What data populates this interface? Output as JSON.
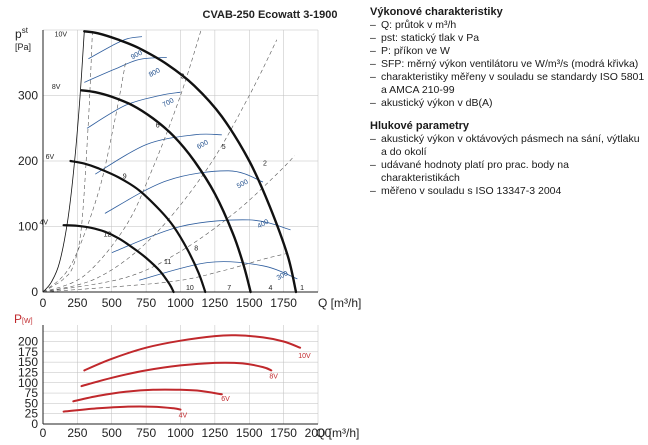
{
  "chart_data": [
    {
      "type": "line",
      "title": "CVAB-250 Ecowatt 3-1900",
      "ylabel_main": "p",
      "ylabel_sub": "st",
      "ylabel_unit": "[Pa]",
      "xlabel": "Q [m³/h]",
      "xlim": [
        0,
        2000
      ],
      "ylim": [
        0,
        400
      ],
      "x_ticks": [
        "0",
        "250",
        "500",
        "750",
        "1000",
        "1250",
        "1500",
        "1750"
      ],
      "y_ticks": [
        "0",
        "100",
        "200",
        "300"
      ],
      "grid": true,
      "fan_curves": [
        {
          "name": "10V",
          "points": [
            [
              300,
              398
            ],
            [
              400,
              395
            ],
            [
              550,
              385
            ],
            [
              700,
              372
            ],
            [
              900,
              348
            ],
            [
              1100,
              315
            ],
            [
              1300,
              268
            ],
            [
              1500,
              200
            ],
            [
              1650,
              130
            ],
            [
              1780,
              55
            ],
            [
              1840,
              0
            ]
          ]
        },
        {
          "name": "8V",
          "points": [
            [
              280,
              308
            ],
            [
              380,
              305
            ],
            [
              500,
              298
            ],
            [
              650,
              285
            ],
            [
              800,
              265
            ],
            [
              950,
              238
            ],
            [
              1100,
              200
            ],
            [
              1250,
              150
            ],
            [
              1380,
              90
            ],
            [
              1460,
              40
            ],
            [
              1510,
              0
            ]
          ]
        },
        {
          "name": "6V",
          "points": [
            [
              200,
              200
            ],
            [
              300,
              196
            ],
            [
              400,
              189
            ],
            [
              550,
              175
            ],
            [
              700,
              155
            ],
            [
              850,
              125
            ],
            [
              950,
              100
            ],
            [
              1050,
              65
            ],
            [
              1130,
              30
            ],
            [
              1180,
              0
            ]
          ]
        },
        {
          "name": "4V",
          "points": [
            [
              150,
              102
            ],
            [
              250,
              101
            ],
            [
              350,
              98
            ],
            [
              450,
              92
            ],
            [
              550,
              82
            ],
            [
              650,
              68
            ],
            [
              750,
              52
            ],
            [
              850,
              32
            ],
            [
              920,
              12
            ],
            [
              950,
              0
            ]
          ]
        }
      ],
      "system_curves": [
        {
          "points": [
            [
              0,
              0
            ],
            [
              80,
              10
            ],
            [
              150,
              20
            ],
            [
              220,
              40
            ],
            [
              280,
              100
            ],
            [
              330,
              260
            ],
            [
              360,
              400
            ]
          ]
        },
        {
          "points": [
            [
              0,
              0
            ],
            [
              200,
              40
            ],
            [
              400,
              150
            ],
            [
              520,
              260
            ],
            [
              600,
              350
            ]
          ]
        },
        {
          "points": [
            [
              0,
              0
            ],
            [
              300,
              25
            ],
            [
              600,
              100
            ],
            [
              800,
              190
            ],
            [
              1000,
              300
            ],
            [
              1150,
              400
            ]
          ]
        },
        {
          "points": [
            [
              0,
              0
            ],
            [
              400,
              22
            ],
            [
              800,
              85
            ],
            [
              1200,
              190
            ],
            [
              1500,
              300
            ],
            [
              1700,
              385
            ]
          ]
        },
        {
          "points": [
            [
              0,
              0
            ],
            [
              600,
              22
            ],
            [
              1000,
              62
            ],
            [
              1400,
              122
            ],
            [
              1700,
              180
            ],
            [
              1830,
              208
            ]
          ]
        },
        {
          "points": [
            [
              0,
              0
            ],
            [
              900,
              15
            ],
            [
              1300,
              32
            ],
            [
              1600,
              50
            ],
            [
              1800,
              60
            ]
          ]
        }
      ],
      "curve_labels": [
        {
          "text": "1",
          "x": 1870,
          "y": 0
        },
        {
          "text": "2",
          "x": 1600,
          "y": 190
        },
        {
          "text": "3",
          "x": 1000,
          "y": 323
        },
        {
          "text": "4",
          "x": 1640,
          "y": 0
        },
        {
          "text": "5",
          "x": 1300,
          "y": 215
        },
        {
          "text": "6",
          "x": 820,
          "y": 248
        },
        {
          "text": "7",
          "x": 1340,
          "y": 0
        },
        {
          "text": "8",
          "x": 1100,
          "y": 60
        },
        {
          "text": "9",
          "x": 580,
          "y": 170
        },
        {
          "text": "10",
          "x": 1040,
          "y": 0
        },
        {
          "text": "11",
          "x": 880,
          "y": 40
        },
        {
          "text": "12",
          "x": 440,
          "y": 82
        }
      ],
      "sfp_curves": [
        {
          "name": "900",
          "points": [
            [
              330,
              356
            ],
            [
              520,
              378
            ],
            [
              620,
              387
            ],
            [
              720,
              390
            ]
          ]
        },
        {
          "name": "800",
          "points": [
            [
              300,
              320
            ],
            [
              520,
              340
            ],
            [
              700,
              355
            ],
            [
              900,
              358
            ]
          ]
        },
        {
          "name": "700",
          "points": [
            [
              320,
              250
            ],
            [
              600,
              285
            ],
            [
              850,
              300
            ],
            [
              1000,
              305
            ]
          ]
        },
        {
          "name": "600",
          "points": [
            [
              380,
              180
            ],
            [
              750,
              225
            ],
            [
              1100,
              240
            ],
            [
              1300,
              240
            ]
          ]
        },
        {
          "name": "500",
          "points": [
            [
              450,
              120
            ],
            [
              900,
              170
            ],
            [
              1350,
              185
            ],
            [
              1600,
              168
            ]
          ]
        },
        {
          "name": "400",
          "points": [
            [
              500,
              60
            ],
            [
              1000,
              100
            ],
            [
              1500,
              110
            ],
            [
              1800,
              95
            ]
          ]
        },
        {
          "name": "300",
          "points": [
            [
              700,
              18
            ],
            [
              1200,
              45
            ],
            [
              1600,
              40
            ],
            [
              1850,
              20
            ]
          ]
        }
      ],
      "sfp_labels": [
        {
          "text": "900",
          "x": 650,
          "y": 355
        },
        {
          "text": "800",
          "x": 780,
          "y": 328
        },
        {
          "text": "700",
          "x": 880,
          "y": 282
        },
        {
          "text": "600",
          "x": 1130,
          "y": 218
        },
        {
          "text": "500",
          "x": 1420,
          "y": 158
        },
        {
          "text": "400",
          "x": 1570,
          "y": 97
        },
        {
          "text": "300",
          "x": 1710,
          "y": 18
        }
      ],
      "speed_labels": [
        {
          "text": "10V",
          "x": 215,
          "y": 390
        },
        {
          "text": "8V",
          "x": 195,
          "y": 310
        },
        {
          "text": "6V",
          "x": 150,
          "y": 203
        },
        {
          "text": "4V",
          "x": 105,
          "y": 103
        }
      ]
    },
    {
      "type": "line",
      "ylabel": "P",
      "ylabel_unit": "[W]",
      "xlabel": "Q [m³/h]",
      "xlim": [
        0,
        2000
      ],
      "ylim": [
        0,
        240
      ],
      "x_ticks": [
        "0",
        "250",
        "500",
        "750",
        "1000",
        "1250",
        "1500",
        "1750",
        "2000"
      ],
      "y_ticks": [
        "0",
        "25",
        "50",
        "75",
        "100",
        "125",
        "150",
        "175",
        "200"
      ],
      "grid": true,
      "series": [
        {
          "name": "10V",
          "points": [
            [
              300,
              130
            ],
            [
              500,
              158
            ],
            [
              750,
              185
            ],
            [
              1000,
              202
            ],
            [
              1250,
              213
            ],
            [
              1400,
              215
            ],
            [
              1600,
              210
            ],
            [
              1750,
              200
            ],
            [
              1870,
              185
            ]
          ]
        },
        {
          "name": "8V",
          "points": [
            [
              280,
              92
            ],
            [
              500,
              112
            ],
            [
              750,
              130
            ],
            [
              1000,
              142
            ],
            [
              1250,
              148
            ],
            [
              1450,
              147
            ],
            [
              1600,
              138
            ],
            [
              1660,
              130
            ]
          ]
        },
        {
          "name": "6V",
          "points": [
            [
              220,
              55
            ],
            [
              400,
              68
            ],
            [
              600,
              78
            ],
            [
              800,
              83
            ],
            [
              1000,
              83
            ],
            [
              1150,
              80
            ],
            [
              1300,
              72
            ]
          ]
        },
        {
          "name": "4V",
          "points": [
            [
              150,
              30
            ],
            [
              400,
              38
            ],
            [
              600,
              42
            ],
            [
              800,
              42
            ],
            [
              950,
              38
            ],
            [
              1000,
              35
            ]
          ]
        }
      ],
      "series_label_offsets": [
        {
          "text": "10V",
          "x": 1900,
          "y": 175
        },
        {
          "text": "8V",
          "x": 1690,
          "y": 125
        },
        {
          "text": "6V",
          "x": 1340,
          "y": 70
        },
        {
          "text": "4V",
          "x": 1030,
          "y": 30
        }
      ]
    }
  ],
  "sidebar": {
    "perf_heading": "Výkonové charakteristiky",
    "perf_items": [
      "Q: průtok v m³/h",
      "pst: statický tlak v Pa",
      "P: příkon ve W",
      "SFP: měrný výkon ventilátoru ve W/m³/s (modrá křivka)",
      "charakteristiky měřeny v souladu se standardy ISO 5801 a AMCA 210-99",
      "akustický výkon v dB(A)"
    ],
    "noise_heading": "Hlukové parametry",
    "noise_items": [
      "akustický výkon v oktávových pásmech na sání, výtlaku a do okolí",
      "udávané hodnoty platí pro prac. body na charakteristikách",
      "měřeno v souladu s ISO 13347-3 2004"
    ]
  },
  "colors": {
    "fan_curve": "#111111",
    "sfp_curve": "#2f5e9e",
    "power_curve": "#c0282c",
    "grid": "#bfbfbf"
  }
}
